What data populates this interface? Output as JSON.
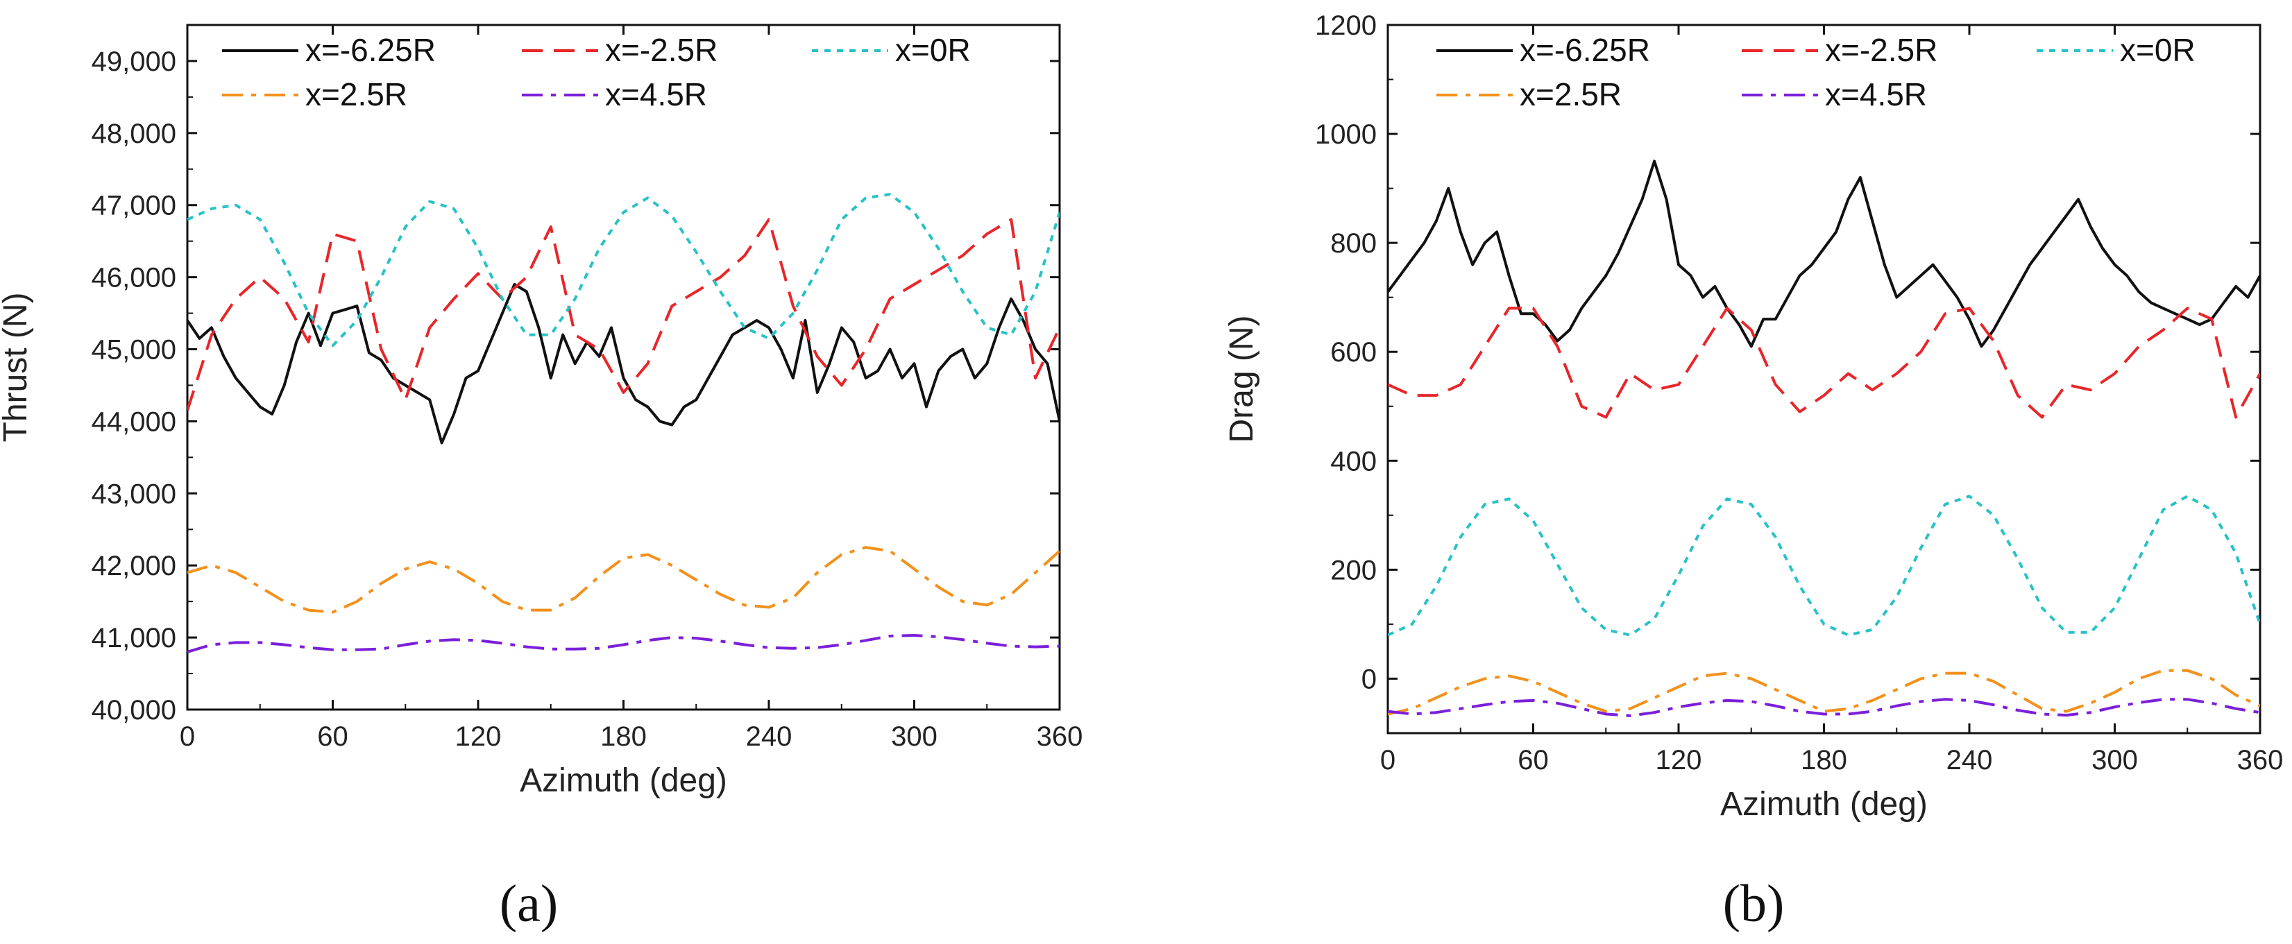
{
  "figure": {
    "panel_labels": [
      "(a)",
      "(b)"
    ]
  },
  "chart_data": [
    {
      "type": "line",
      "panel": "(a)",
      "title": "",
      "xlabel": "Azimuth (deg)",
      "ylabel": "Thrust (N)",
      "xlim": [
        0,
        360
      ],
      "ylim": [
        40000,
        49500
      ],
      "xticks": [
        0,
        60,
        120,
        180,
        240,
        300,
        360
      ],
      "xtick_labels": [
        "0",
        "60",
        "120",
        "180",
        "240",
        "300",
        "360"
      ],
      "yticks": [
        40000,
        41000,
        42000,
        43000,
        44000,
        45000,
        46000,
        47000,
        48000,
        49000
      ],
      "ytick_labels": [
        "40,000",
        "41,000",
        "42,000",
        "43,000",
        "44,000",
        "45,000",
        "46,000",
        "47,000",
        "48,000",
        "49,000"
      ],
      "legend_columns": 3,
      "series": [
        {
          "name": "x=-6.25R",
          "color": "#111111",
          "dash": "solid",
          "x": [
            0,
            5,
            10,
            15,
            20,
            25,
            30,
            35,
            40,
            45,
            50,
            55,
            60,
            65,
            70,
            75,
            80,
            85,
            90,
            95,
            100,
            105,
            110,
            115,
            120,
            125,
            130,
            135,
            140,
            145,
            150,
            155,
            160,
            165,
            170,
            175,
            180,
            185,
            190,
            195,
            200,
            205,
            210,
            215,
            220,
            225,
            230,
            235,
            240,
            245,
            250,
            255,
            260,
            265,
            270,
            275,
            280,
            285,
            290,
            295,
            300,
            305,
            310,
            315,
            320,
            325,
            330,
            335,
            340,
            345,
            350,
            355,
            360
          ],
          "y": [
            45400,
            45150,
            45300,
            44900,
            44600,
            44400,
            44200,
            44100,
            44500,
            45100,
            45500,
            45050,
            45500,
            45550,
            45600,
            44950,
            44850,
            44600,
            44500,
            44400,
            44300,
            43700,
            44100,
            44600,
            44700,
            45100,
            45500,
            45900,
            45800,
            45300,
            44600,
            45200,
            44800,
            45100,
            44900,
            45300,
            44600,
            44300,
            44200,
            44000,
            43950,
            44200,
            44300,
            44600,
            44900,
            45200,
            45300,
            45400,
            45300,
            45000,
            44600,
            45400,
            44400,
            44800,
            45300,
            45100,
            44600,
            44700,
            45000,
            44600,
            44800,
            44200,
            44700,
            44900,
            45000,
            44600,
            44800,
            45300,
            45700,
            45400,
            45000,
            44800,
            44000
          ]
        },
        {
          "name": "x=-2.5R",
          "color": "#e8262a",
          "dash": "dashed",
          "x": [
            0,
            10,
            20,
            30,
            40,
            50,
            60,
            70,
            80,
            90,
            100,
            110,
            120,
            130,
            140,
            150,
            160,
            170,
            180,
            190,
            200,
            210,
            220,
            230,
            240,
            250,
            260,
            270,
            280,
            290,
            300,
            310,
            320,
            330,
            340,
            350,
            360
          ],
          "y": [
            44150,
            45200,
            45700,
            46000,
            45700,
            45100,
            46600,
            46500,
            45000,
            44300,
            45300,
            45700,
            46050,
            45700,
            46000,
            46700,
            45200,
            45000,
            44400,
            44800,
            45600,
            45800,
            46000,
            46300,
            46800,
            45600,
            44900,
            44500,
            45000,
            45700,
            45900,
            46100,
            46300,
            46600,
            46800,
            44600,
            45300
          ]
        },
        {
          "name": "x=0R",
          "color": "#27c2c8",
          "dash": "dotted",
          "x": [
            0,
            10,
            20,
            30,
            40,
            50,
            60,
            70,
            80,
            90,
            100,
            110,
            120,
            130,
            140,
            150,
            160,
            170,
            180,
            190,
            200,
            210,
            220,
            230,
            240,
            250,
            260,
            270,
            280,
            290,
            300,
            310,
            320,
            330,
            340,
            350,
            360
          ],
          "y": [
            46800,
            46950,
            47000,
            46800,
            46200,
            45500,
            45050,
            45400,
            46000,
            46700,
            47050,
            46950,
            46400,
            45700,
            45200,
            45200,
            45700,
            46400,
            46900,
            47100,
            46850,
            46350,
            45800,
            45300,
            45150,
            45500,
            46100,
            46800,
            47100,
            47150,
            46900,
            46400,
            45800,
            45300,
            45200,
            45800,
            46900
          ]
        },
        {
          "name": "x=2.5R",
          "color": "#f2911b",
          "dash": "dashdot",
          "x": [
            0,
            10,
            20,
            30,
            40,
            50,
            60,
            70,
            80,
            90,
            100,
            110,
            120,
            130,
            140,
            150,
            160,
            170,
            180,
            190,
            200,
            210,
            220,
            230,
            240,
            250,
            260,
            270,
            280,
            290,
            300,
            310,
            320,
            330,
            340,
            350,
            360
          ],
          "y": [
            41900,
            42000,
            41900,
            41700,
            41500,
            41380,
            41350,
            41500,
            41750,
            41950,
            42050,
            41950,
            41750,
            41500,
            41380,
            41380,
            41550,
            41850,
            42100,
            42150,
            42000,
            41800,
            41600,
            41450,
            41420,
            41550,
            41900,
            42150,
            42250,
            42200,
            41950,
            41700,
            41500,
            41450,
            41600,
            41900,
            42200
          ]
        },
        {
          "name": "x=4.5R",
          "color": "#7b1fd9",
          "dash": "dashdot",
          "x": [
            0,
            10,
            20,
            30,
            40,
            50,
            60,
            70,
            80,
            90,
            100,
            110,
            120,
            130,
            140,
            150,
            160,
            170,
            180,
            190,
            200,
            210,
            220,
            230,
            240,
            250,
            260,
            270,
            280,
            290,
            300,
            310,
            320,
            330,
            340,
            350,
            360
          ],
          "y": [
            40800,
            40900,
            40930,
            40930,
            40900,
            40860,
            40830,
            40830,
            40840,
            40900,
            40950,
            40970,
            40960,
            40920,
            40870,
            40840,
            40840,
            40850,
            40900,
            40960,
            41000,
            40990,
            40950,
            40900,
            40860,
            40850,
            40860,
            40900,
            40960,
            41020,
            41030,
            41010,
            40970,
            40920,
            40880,
            40870,
            40880
          ]
        }
      ]
    },
    {
      "type": "line",
      "panel": "(b)",
      "title": "",
      "xlabel": "Azimuth (deg)",
      "ylabel": "Drag (N)",
      "xlim": [
        0,
        360
      ],
      "ylim": [
        -100,
        1200
      ],
      "xticks": [
        0,
        60,
        120,
        180,
        240,
        300,
        360
      ],
      "xtick_labels": [
        "0",
        "60",
        "120",
        "180",
        "240",
        "300",
        "360"
      ],
      "yticks": [
        0,
        200,
        400,
        600,
        800,
        1000,
        1200
      ],
      "ytick_labels": [
        "0",
        "200",
        "400",
        "600",
        "800",
        "1000",
        "1200"
      ],
      "legend_columns": 3,
      "series": [
        {
          "name": "x=-6.25R",
          "color": "#111111",
          "dash": "solid",
          "x": [
            0,
            5,
            10,
            15,
            20,
            25,
            30,
            35,
            40,
            45,
            50,
            55,
            60,
            65,
            70,
            75,
            80,
            85,
            90,
            95,
            100,
            105,
            110,
            115,
            120,
            125,
            130,
            135,
            140,
            145,
            150,
            155,
            160,
            165,
            170,
            175,
            180,
            185,
            190,
            195,
            200,
            205,
            210,
            215,
            220,
            225,
            230,
            235,
            240,
            245,
            250,
            255,
            260,
            265,
            270,
            275,
            280,
            285,
            290,
            295,
            300,
            305,
            310,
            315,
            320,
            325,
            330,
            335,
            340,
            345,
            350,
            355,
            360
          ],
          "y": [
            710,
            740,
            770,
            800,
            840,
            900,
            820,
            760,
            800,
            820,
            740,
            670,
            670,
            650,
            620,
            640,
            680,
            710,
            740,
            780,
            830,
            880,
            950,
            880,
            760,
            740,
            700,
            720,
            680,
            650,
            610,
            660,
            660,
            700,
            740,
            760,
            790,
            820,
            880,
            920,
            840,
            760,
            700,
            720,
            740,
            760,
            730,
            700,
            660,
            610,
            640,
            680,
            720,
            760,
            790,
            820,
            850,
            880,
            830,
            790,
            760,
            740,
            710,
            690,
            680,
            670,
            660,
            650,
            660,
            690,
            720,
            700,
            740
          ]
        },
        {
          "name": "x=-2.5R",
          "color": "#e8262a",
          "dash": "dashed",
          "x": [
            0,
            10,
            20,
            30,
            40,
            50,
            60,
            70,
            80,
            90,
            100,
            110,
            120,
            130,
            140,
            150,
            160,
            170,
            180,
            190,
            200,
            210,
            220,
            230,
            240,
            250,
            260,
            270,
            280,
            290,
            300,
            310,
            320,
            330,
            340,
            350,
            360
          ],
          "y": [
            540,
            520,
            520,
            540,
            610,
            680,
            680,
            610,
            500,
            480,
            560,
            530,
            540,
            610,
            680,
            640,
            540,
            490,
            520,
            560,
            530,
            560,
            600,
            670,
            680,
            620,
            520,
            480,
            540,
            530,
            560,
            610,
            640,
            680,
            660,
            480,
            560
          ]
        },
        {
          "name": "x=0R",
          "color": "#27c2c8",
          "dash": "dotted",
          "x": [
            0,
            10,
            20,
            30,
            40,
            50,
            60,
            70,
            80,
            90,
            100,
            110,
            120,
            130,
            140,
            150,
            160,
            170,
            180,
            190,
            200,
            210,
            220,
            230,
            240,
            250,
            260,
            270,
            280,
            290,
            300,
            310,
            320,
            330,
            340,
            350,
            360
          ],
          "y": [
            80,
            100,
            170,
            260,
            320,
            330,
            290,
            210,
            130,
            90,
            80,
            110,
            190,
            280,
            330,
            320,
            260,
            170,
            100,
            80,
            90,
            150,
            240,
            320,
            335,
            300,
            220,
            130,
            85,
            85,
            130,
            220,
            310,
            335,
            310,
            230,
            100
          ]
        },
        {
          "name": "x=2.5R",
          "color": "#f2911b",
          "dash": "dashdot",
          "x": [
            0,
            10,
            20,
            30,
            40,
            50,
            60,
            70,
            80,
            90,
            100,
            110,
            120,
            130,
            140,
            150,
            160,
            170,
            180,
            190,
            200,
            210,
            220,
            230,
            240,
            250,
            260,
            270,
            280,
            290,
            300,
            310,
            320,
            330,
            340,
            350,
            360
          ],
          "y": [
            -65,
            -55,
            -35,
            -15,
            0,
            5,
            -5,
            -25,
            -45,
            -60,
            -55,
            -35,
            -15,
            5,
            10,
            0,
            -20,
            -40,
            -60,
            -55,
            -40,
            -20,
            0,
            10,
            10,
            -5,
            -30,
            -55,
            -60,
            -45,
            -25,
            0,
            15,
            15,
            0,
            -30,
            -50
          ]
        },
        {
          "name": "x=4.5R",
          "color": "#7b1fd9",
          "dash": "dashdot",
          "x": [
            0,
            10,
            20,
            30,
            40,
            50,
            60,
            70,
            80,
            90,
            100,
            110,
            120,
            130,
            140,
            150,
            160,
            170,
            180,
            190,
            200,
            210,
            220,
            230,
            240,
            250,
            260,
            270,
            280,
            290,
            300,
            310,
            320,
            330,
            340,
            350,
            360
          ],
          "y": [
            -60,
            -65,
            -62,
            -55,
            -48,
            -42,
            -40,
            -45,
            -55,
            -65,
            -68,
            -62,
            -52,
            -45,
            -40,
            -42,
            -50,
            -60,
            -65,
            -65,
            -60,
            -50,
            -42,
            -38,
            -40,
            -48,
            -58,
            -65,
            -67,
            -62,
            -52,
            -44,
            -38,
            -38,
            -45,
            -55,
            -62
          ]
        }
      ]
    }
  ]
}
